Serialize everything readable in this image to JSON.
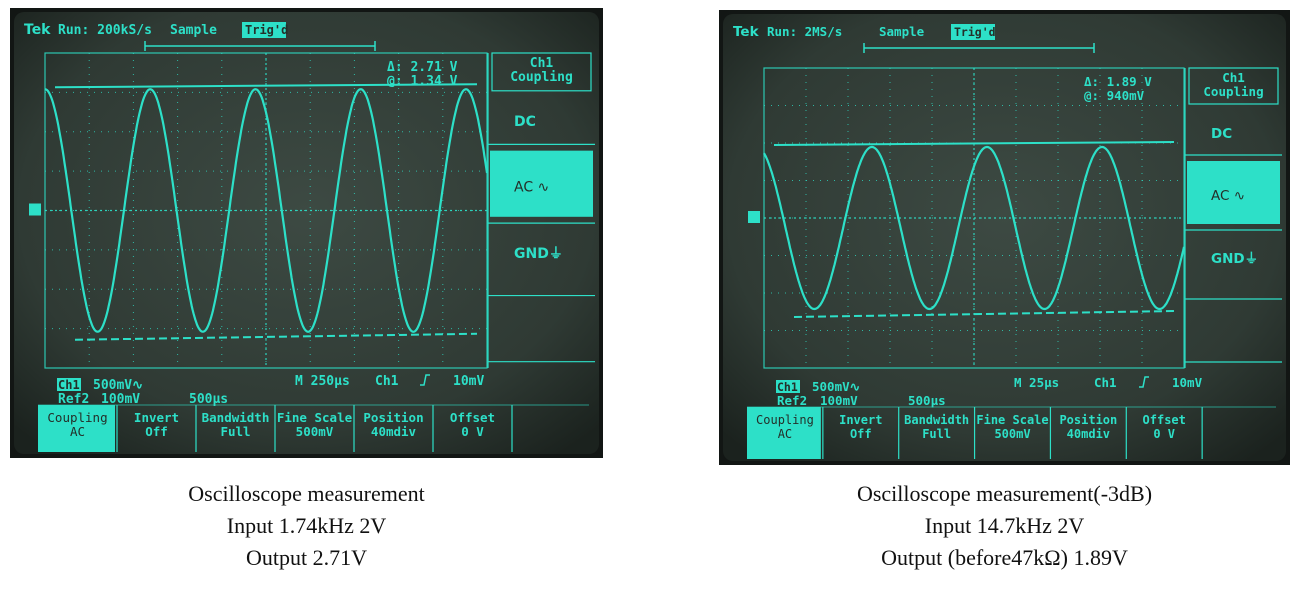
{
  "colors": {
    "trace": "#2de0c8",
    "screen": "#2f3a34",
    "bezel": "#121614"
  },
  "scopes": [
    {
      "header": {
        "brand": "Tek",
        "run": "Run: 200kS/s",
        "mode": "Sample",
        "status": "Trig'd"
      },
      "measure": {
        "delta": "Δ: 2.71 V",
        "at": "@: 1.34 V"
      },
      "menu": {
        "title_line1": "Ch1",
        "title_line2": "Coupling",
        "dc": "DC",
        "ac": "AC ∿",
        "gnd": "GND⏚"
      },
      "status": {
        "ch1": "Ch1",
        "ch1_scale": "500mV∿",
        "ref2": "Ref2",
        "ref2_scale": "100mV",
        "time2": "500µs",
        "mtime": "M 250µs",
        "trig_src": "Ch1",
        "trig_level": "10mV"
      },
      "bottom": [
        {
          "l1": "Coupling",
          "l2": "AC"
        },
        {
          "l1": "Invert",
          "l2": "Off"
        },
        {
          "l1": "Bandwidth",
          "l2": "Full"
        },
        {
          "l1": "Fine Scale",
          "l2": "500mV"
        },
        {
          "l1": "Position",
          "l2": "40mdiv"
        },
        {
          "l1": "Offset",
          "l2": "0 V"
        }
      ],
      "cycles": 4.2
    },
    {
      "header": {
        "brand": "Tek",
        "run": "Run: 2MS/s",
        "mode": "Sample",
        "status": "Trig'd"
      },
      "measure": {
        "delta": "Δ: 1.89 V",
        "at": "@: 940mV"
      },
      "menu": {
        "title_line1": "Ch1",
        "title_line2": "Coupling",
        "dc": "DC",
        "ac": "AC ∿",
        "gnd": "GND⏚"
      },
      "status": {
        "ch1": "Ch1",
        "ch1_scale": "500mV∿",
        "ref2": "Ref2",
        "ref2_scale": "100mV",
        "time2": "500µs",
        "mtime": "M 25µs",
        "trig_src": "Ch1",
        "trig_level": "10mV"
      },
      "bottom": [
        {
          "l1": "Coupling",
          "l2": "AC"
        },
        {
          "l1": "Invert",
          "l2": "Off"
        },
        {
          "l1": "Bandwidth",
          "l2": "Full"
        },
        {
          "l1": "Fine Scale",
          "l2": "500mV"
        },
        {
          "l1": "Position",
          "l2": "40mdiv"
        },
        {
          "l1": "Offset",
          "l2": "0 V"
        }
      ],
      "cycles": 3.65
    }
  ],
  "captions": [
    {
      "line1": "Oscilloscope measurement",
      "line2": "Input 1.74kHz 2V",
      "line3": "Output 2.71V"
    },
    {
      "line1": "Oscilloscope measurement(-3dB)",
      "line2": "Input 14.7kHz 2V",
      "line3": "Output (before47kΩ) 1.89V"
    }
  ]
}
